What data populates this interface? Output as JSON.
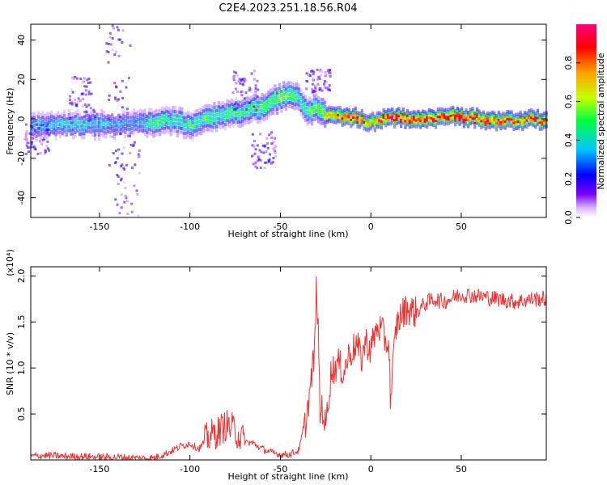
{
  "title": "C2E4.2023.251.18.56.R04",
  "chart_data": [
    {
      "type": "heatmap",
      "xlabel": "Height of straight line (km)",
      "ylabel": "Frequency (Hz)",
      "xlim": [
        -188,
        97
      ],
      "ylim": [
        -50,
        48
      ],
      "xticks": [
        -150,
        -100,
        -50,
        0,
        50
      ],
      "yticks": [
        -40,
        -20,
        0,
        20,
        40
      ],
      "colorbar": {
        "label": "Normalized spectral amplitude",
        "ticks": [
          0.0,
          0.2,
          0.4,
          0.6,
          0.8
        ],
        "range": [
          0,
          1
        ],
        "colormap": [
          "#ffffff",
          "#7b00ff",
          "#0000ff",
          "#00c8ff",
          "#00ff40",
          "#c8ff00",
          "#ffa000",
          "#ff0000",
          "#ff0080"
        ]
      },
      "ridge": {
        "x": [
          -188,
          -170,
          -150,
          -140,
          -130,
          -120,
          -110,
          -100,
          -90,
          -80,
          -70,
          -60,
          -55,
          -50,
          -45,
          -40,
          -35,
          -30,
          -25,
          -20,
          -10,
          0,
          10,
          20,
          30,
          40,
          50,
          60,
          70,
          80,
          90,
          97
        ],
        "frequency": [
          -4,
          -3,
          -3,
          -3,
          -2,
          -2,
          -1,
          -3,
          0,
          2,
          4,
          6,
          9,
          11,
          12,
          10,
          4,
          5,
          2,
          1,
          1,
          -2,
          1,
          0,
          0,
          1,
          1,
          0,
          -1,
          -1,
          0,
          -1
        ],
        "amplitude": [
          0.35,
          0.35,
          0.35,
          0.3,
          0.3,
          0.45,
          0.4,
          0.45,
          0.5,
          0.45,
          0.45,
          0.5,
          0.5,
          0.55,
          0.5,
          0.45,
          0.45,
          0.55,
          0.65,
          0.75,
          0.9,
          0.7,
          0.95,
          0.95,
          0.9,
          0.85,
          1.0,
          0.9,
          0.85,
          0.8,
          0.85,
          0.8
        ]
      }
    },
    {
      "type": "line",
      "xlabel": "Height of straight line (km)",
      "ylabel": "SNR (10 * v/v)",
      "y_multiplier": "(x10⁴)",
      "xlim": [
        -188,
        97
      ],
      "ylim": [
        0,
        2.1
      ],
      "xticks": [
        -150,
        -100,
        -50,
        0,
        50
      ],
      "yticks": [
        0.5,
        1.0,
        1.5,
        2.0
      ],
      "color": "#ee3333",
      "series": [
        {
          "x": [
            -188,
            -180,
            -170,
            -160,
            -150,
            -140,
            -130,
            -120,
            -112,
            -105,
            -100,
            -95,
            -90,
            -85,
            -80,
            -75,
            -70,
            -65,
            -60,
            -55,
            -50,
            -45,
            -40,
            -37,
            -35,
            -33,
            -31,
            -30,
            -29,
            -28,
            -27,
            -25,
            -22,
            -20,
            -18,
            -15,
            -12,
            -10,
            -8,
            -5,
            -3,
            0,
            2,
            4,
            6,
            8,
            10,
            11,
            12,
            14,
            16,
            18,
            20,
            25,
            30,
            35,
            40,
            50,
            60,
            70,
            80,
            90,
            97
          ],
          "values": [
            0.04,
            0.05,
            0.04,
            0.04,
            0.03,
            0.03,
            0.02,
            0.02,
            0.08,
            0.15,
            0.18,
            0.12,
            0.25,
            0.3,
            0.38,
            0.32,
            0.2,
            0.18,
            0.12,
            0.08,
            0.06,
            0.06,
            0.1,
            0.3,
            0.55,
            0.85,
            1.2,
            1.95,
            1.3,
            0.45,
            0.6,
            0.35,
            0.95,
            1.0,
            1.05,
            0.95,
            1.15,
            1.2,
            1.25,
            1.1,
            1.3,
            1.2,
            1.35,
            1.45,
            1.4,
            1.3,
            1.25,
            0.6,
            0.95,
            1.45,
            1.55,
            1.6,
            1.65,
            1.6,
            1.7,
            1.75,
            1.72,
            1.8,
            1.78,
            1.75,
            1.72,
            1.75,
            1.75
          ]
        }
      ]
    }
  ]
}
